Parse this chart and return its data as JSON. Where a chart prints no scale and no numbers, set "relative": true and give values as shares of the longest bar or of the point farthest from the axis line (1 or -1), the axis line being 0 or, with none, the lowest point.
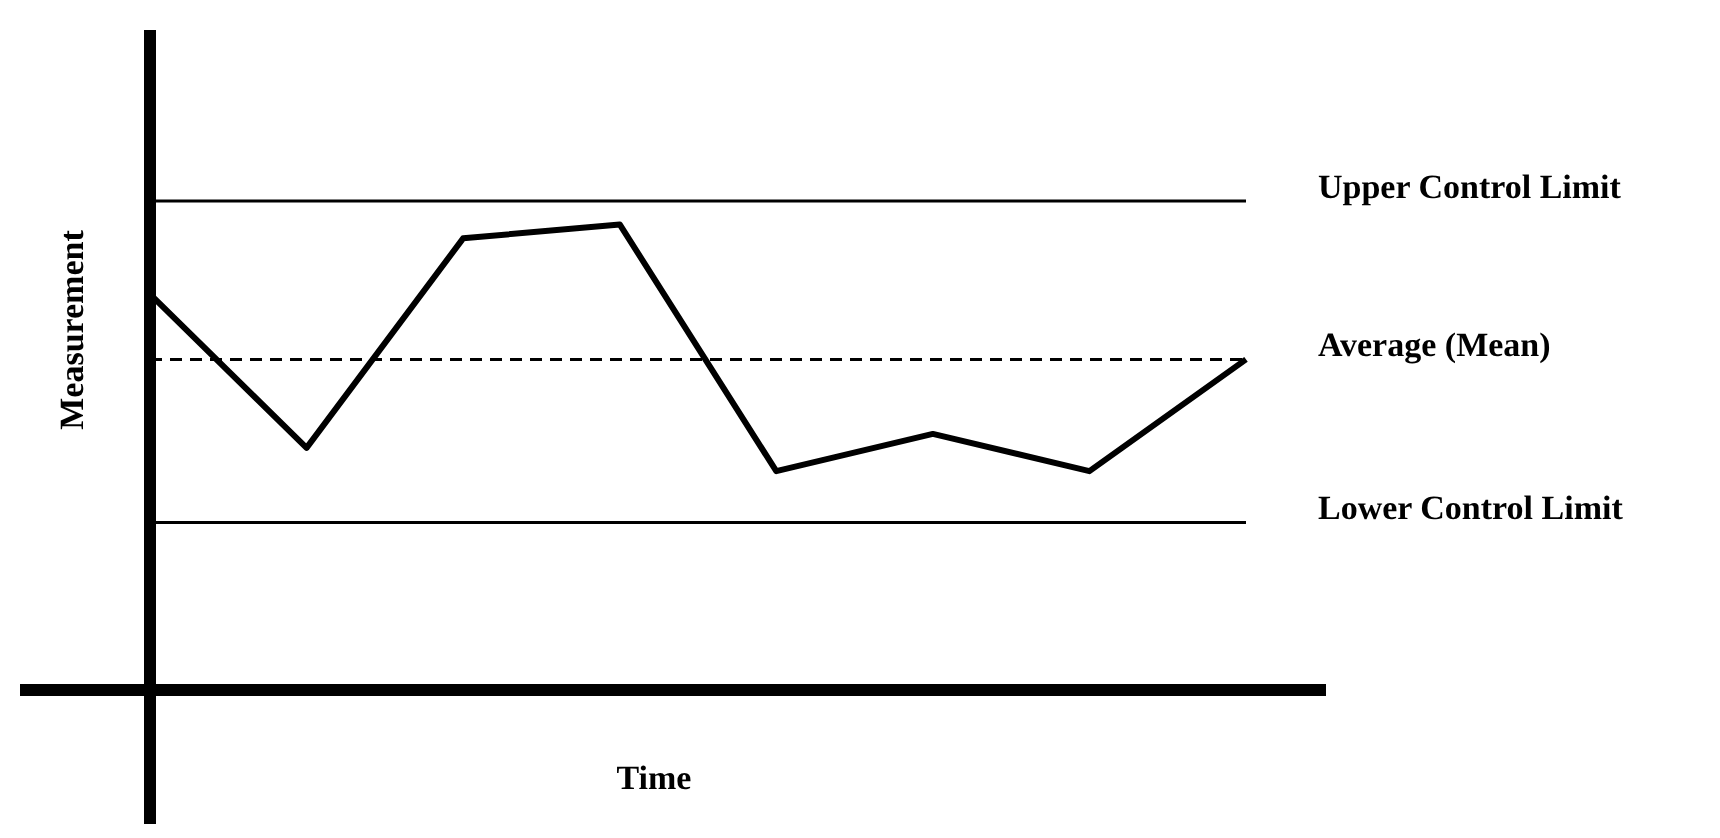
{
  "chart_data": {
    "type": "line",
    "relative": true,
    "xlabel": "Time",
    "ylabel": "Measurement",
    "categories": [
      null,
      null,
      null,
      null,
      null,
      null,
      null,
      null
    ],
    "series": [
      {
        "color": "#000000",
        "values": [
          0.85,
          0.52,
          0.97,
          1,
          0.47,
          0.55,
          0.47,
          0.71
        ]
      }
    ],
    "ref_lines": [
      {
        "axis": "y",
        "value": 1.05,
        "label": "Upper Control Limit",
        "color": "#000000",
        "line_style": "solid"
      },
      {
        "axis": "y",
        "value": 0.71,
        "label": "Average (Mean)",
        "color": "#000000",
        "line_style": "dashed"
      },
      {
        "axis": "y",
        "value": 0.36,
        "label": "Lower Control Limit",
        "color": "#000000",
        "line_style": "solid"
      }
    ],
    "legend": false,
    "marker": "none",
    "line_style": "solid"
  }
}
